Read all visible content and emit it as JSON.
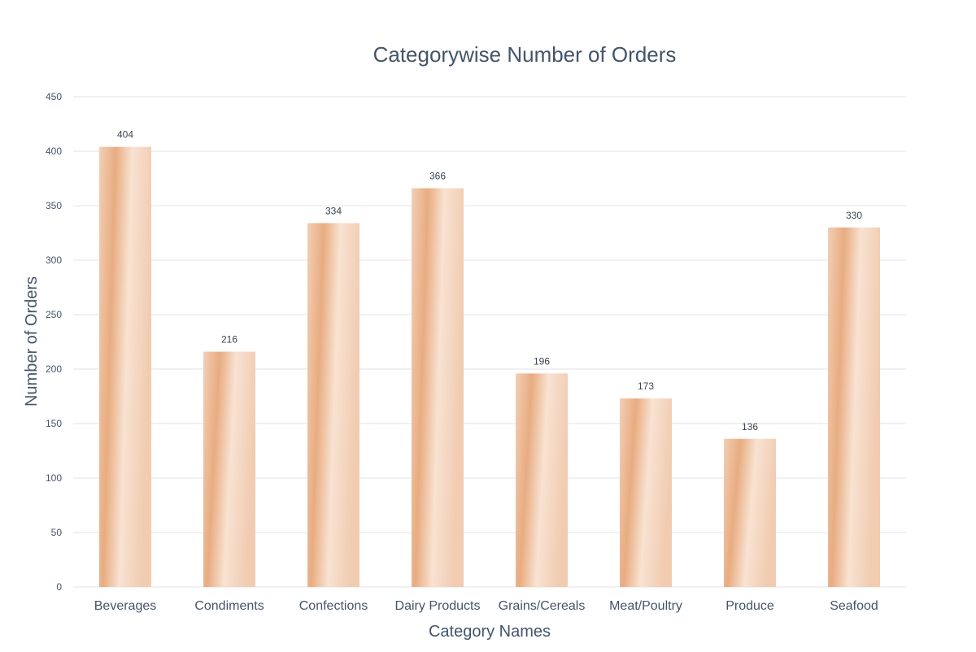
{
  "chart_data": {
    "type": "bar",
    "title": "Categorywise Number of Orders",
    "xlabel": "Category Names",
    "ylabel": "Number of Orders",
    "categories": [
      "Beverages",
      "Condiments",
      "Confections",
      "Dairy Products",
      "Grains/Cereals",
      "Meat/Poultry",
      "Produce",
      "Seafood"
    ],
    "values": [
      404,
      216,
      334,
      366,
      196,
      173,
      136,
      330
    ],
    "ylim": [
      0,
      450
    ],
    "yticks": [
      0,
      50,
      100,
      150,
      200,
      250,
      300,
      350,
      400,
      450
    ],
    "grid": true,
    "legend": "none",
    "colors": {
      "bar_dark": "#e8ac80",
      "bar_light": "#f8e2d2",
      "text": "#44546a",
      "grid": "#e3e3e3"
    }
  }
}
